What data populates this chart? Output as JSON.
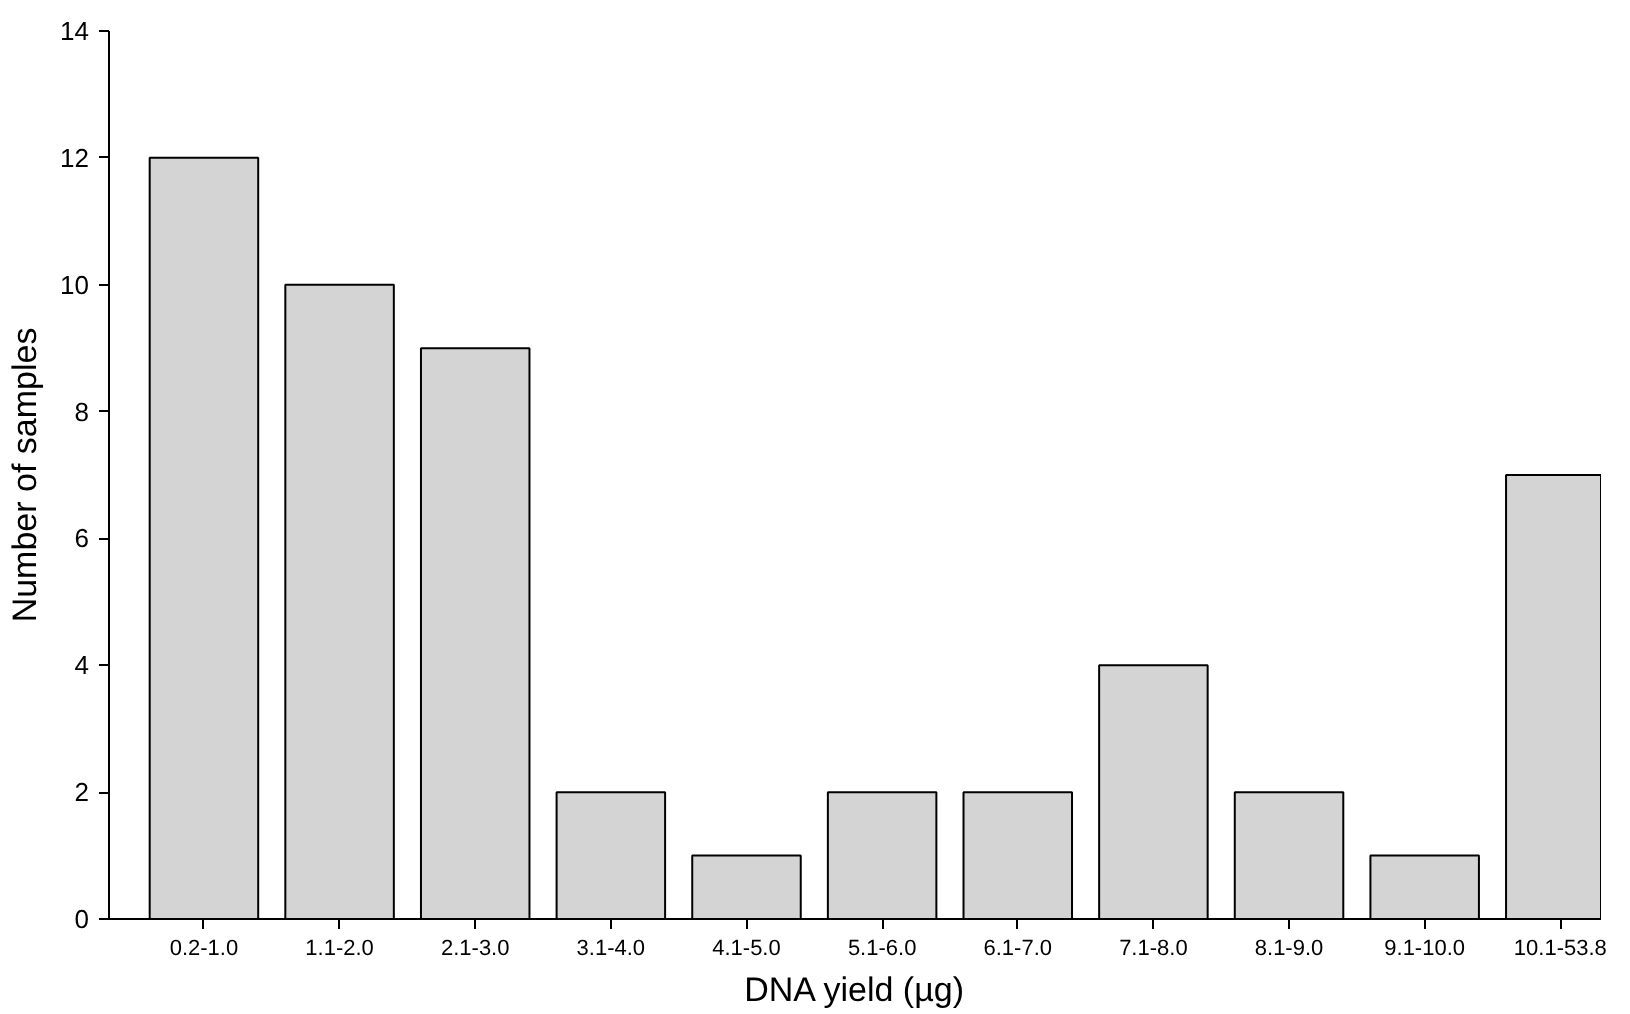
{
  "chart_data": {
    "type": "bar",
    "xlabel": "DNA yield (µg)",
    "ylabel": "Number of samples",
    "categories": [
      "0.2-1.0",
      "1.1-2.0",
      "2.1-3.0",
      "3.1-4.0",
      "4.1-5.0",
      "5.1-6.0",
      "6.1-7.0",
      "7.1-8.0",
      "8.1-9.0",
      "9.1-10.0",
      "10.1-53.8"
    ],
    "values": [
      12,
      10,
      9,
      2,
      1,
      2,
      2,
      4,
      2,
      1,
      7
    ],
    "color": "#d4d4d4",
    "ylim": [
      0,
      14
    ],
    "yticks": [
      0,
      2,
      4,
      6,
      8,
      10,
      12,
      14
    ],
    "grid": false
  }
}
